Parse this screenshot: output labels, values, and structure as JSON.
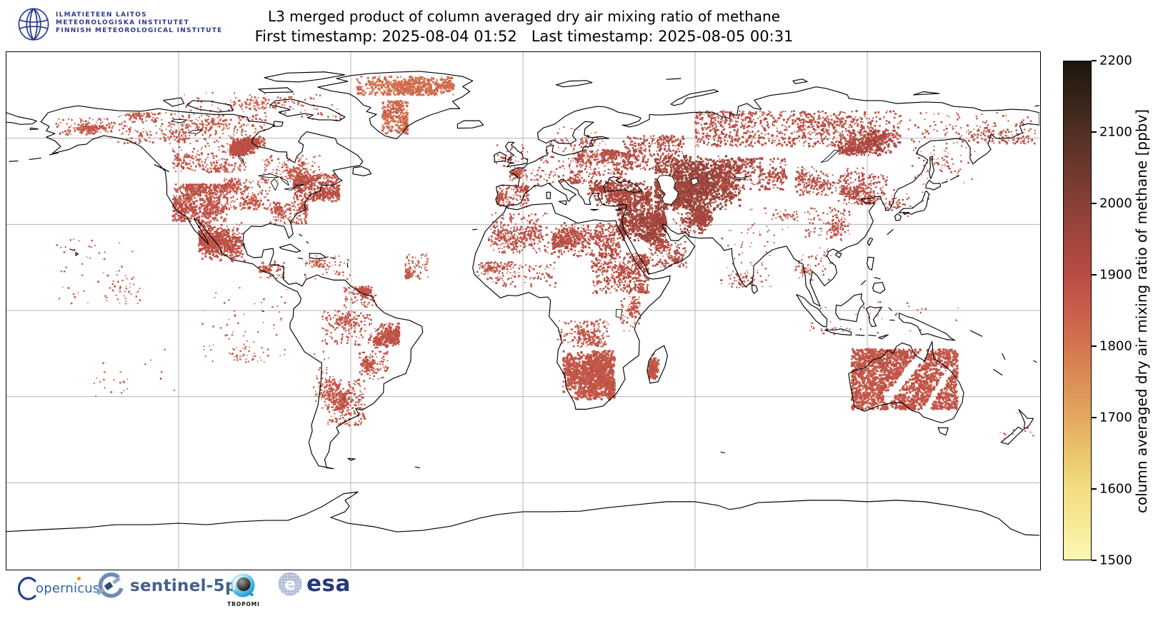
{
  "header": {
    "logo_lines": [
      "ILMATIETEEN LAITOS",
      "METEOROLOGISKA INSTITUTET",
      "FINNISH METEOROLOGICAL INSTITUTE"
    ],
    "fmi_navy": "#2d3a8c"
  },
  "title": "L3 merged product of column averaged dry air mixing ratio of methane",
  "subtitle": "First timestamp: 2025-08-04 01:52   Last timestamp: 2025-08-05 00:31",
  "colorbar": {
    "label": "column averaged dry air mixing ratio of methane [ppbv]",
    "min": 1500,
    "max": 2200,
    "ticks": [
      2200,
      2100,
      2000,
      1900,
      1800,
      1700,
      1600,
      1500
    ],
    "stops": [
      [
        1500,
        "#fdf8b4"
      ],
      [
        1550,
        "#f7ea96"
      ],
      [
        1600,
        "#f2dd80"
      ],
      [
        1650,
        "#ecc46c"
      ],
      [
        1700,
        "#e3a85e"
      ],
      [
        1750,
        "#dc8f55"
      ],
      [
        1800,
        "#d4754f"
      ],
      [
        1850,
        "#c95e4a"
      ],
      [
        1900,
        "#b94c44"
      ],
      [
        1950,
        "#a2463d"
      ],
      [
        2000,
        "#874036"
      ],
      [
        2050,
        "#6c382d"
      ],
      [
        2100,
        "#513024"
      ],
      [
        2150,
        "#362318"
      ],
      [
        2200,
        "#1c160d"
      ]
    ]
  },
  "footer_logos": {
    "copernicus_text": "opernicus",
    "sentinel_text": "sentinel-5p",
    "tropomi_text": "TROPOMI",
    "esa_text": "esa",
    "copernicus_blue": "#2a66ad",
    "sentinel_blue": "#44618c",
    "esa_navy": "#27397a",
    "tropomi_blue": "#29a8dc"
  },
  "map_style": {
    "grid_color": "#b3b3b3",
    "coast_color": "#000000",
    "background": "#ffffff"
  },
  "chart_data": {
    "type": "heatmap",
    "title": "L3 merged product of column averaged dry air mixing ratio of methane",
    "first_timestamp": "2025-08-04 01:52",
    "last_timestamp": "2025-08-05 00:31",
    "projection": "equirectangular",
    "lon_range": [
      -180,
      180
    ],
    "lat_range": [
      -90,
      90
    ],
    "grid_step": {
      "lon": 60,
      "lat": 30
    },
    "colorbar_label": "column averaged dry air mixing ratio of methane [ppbv]",
    "units": "ppbv",
    "value_range": [
      1500,
      2200
    ],
    "coverage_regions": [
      {
        "name": "alaska-interior",
        "lon": [
          -163,
          -142
        ],
        "lat": [
          61,
          67
        ],
        "points": 220,
        "value": 1862,
        "spread": 20,
        "size": 2.2,
        "mode": "scatter"
      },
      {
        "name": "nw-canada",
        "lon": [
          -141,
          -117
        ],
        "lat": [
          58,
          69
        ],
        "points": 300,
        "value": 1866,
        "spread": 20,
        "size": 2.2,
        "mode": "scatter"
      },
      {
        "name": "n-canada",
        "lon": [
          -117,
          -90
        ],
        "lat": [
          57,
          68
        ],
        "points": 320,
        "value": 1866,
        "spread": 20,
        "size": 2.2,
        "mode": "scatter"
      },
      {
        "name": "hudson-bay-west",
        "lon": [
          -102,
          -92
        ],
        "lat": [
          54,
          60
        ],
        "points": 800,
        "value": 1890,
        "spread": 22,
        "size": 2.6,
        "mode": "blob"
      },
      {
        "name": "c-canada",
        "lon": [
          -122,
          -96
        ],
        "lat": [
          48,
          57
        ],
        "points": 300,
        "value": 1868,
        "spread": 20,
        "size": 2.2,
        "mode": "scatter"
      },
      {
        "name": "ontario-quebec",
        "lon": [
          -91,
          -70
        ],
        "lat": [
          45,
          54
        ],
        "points": 260,
        "value": 1872,
        "spread": 22,
        "size": 2.2,
        "mode": "scatter"
      },
      {
        "name": "ne-us-coast",
        "lon": [
          -80,
          -64
        ],
        "lat": [
          38,
          47.5
        ],
        "points": 600,
        "value": 1888,
        "spread": 28,
        "size": 2.4,
        "mode": "scatter"
      },
      {
        "name": "se-us",
        "lon": [
          -88,
          -75
        ],
        "lat": [
          30,
          38
        ],
        "points": 260,
        "value": 1876,
        "spread": 22,
        "size": 2.2,
        "mode": "scatter"
      },
      {
        "name": "us-plains",
        "lon": [
          -104,
          -88
        ],
        "lat": [
          35,
          46
        ],
        "points": 300,
        "value": 1870,
        "spread": 20,
        "size": 2.2,
        "mode": "scatter"
      },
      {
        "name": "sw-us",
        "lon": [
          -122,
          -103
        ],
        "lat": [
          31,
          44
        ],
        "points": 850,
        "value": 1880,
        "spread": 26,
        "size": 2.4,
        "mode": "scatter"
      },
      {
        "name": "mexico",
        "lon": [
          -113,
          -97
        ],
        "lat": [
          17,
          31
        ],
        "points": 900,
        "value": 1886,
        "spread": 26,
        "size": 2.4,
        "mode": "blob"
      },
      {
        "name": "central-america",
        "lon": [
          -92,
          -83
        ],
        "lat": [
          11,
          17
        ],
        "points": 90,
        "value": 1878,
        "spread": 18,
        "size": 2.2,
        "mode": "scatter"
      },
      {
        "name": "greenland-north",
        "lon": [
          -58,
          -24
        ],
        "lat": [
          75,
          81.5
        ],
        "points": 650,
        "value": 1815,
        "spread": 22,
        "size": 2.6,
        "mode": "scatter"
      },
      {
        "name": "greenland-central",
        "lon": [
          -49,
          -40
        ],
        "lat": [
          61.5,
          73
        ],
        "points": 420,
        "value": 1822,
        "spread": 22,
        "size": 2.4,
        "mode": "scatter"
      },
      {
        "name": "arctic-islands",
        "lon": [
          -118,
          -63
        ],
        "lat": [
          66,
          76
        ],
        "points": 170,
        "value": 1855,
        "spread": 20,
        "size": 2.2,
        "mode": "scatter"
      },
      {
        "name": "caribbean",
        "lon": [
          -76,
          -59
        ],
        "lat": [
          11,
          19
        ],
        "points": 90,
        "value": 1870,
        "spread": 18,
        "size": 2.0,
        "mode": "scatter"
      },
      {
        "name": "venezuela-guyana",
        "lon": [
          -63,
          -51
        ],
        "lat": [
          1,
          8.5
        ],
        "points": 180,
        "value": 1876,
        "spread": 20,
        "size": 2.2,
        "mode": "scatter"
      },
      {
        "name": "amazon",
        "lon": [
          -70,
          -52
        ],
        "lat": [
          -12,
          0
        ],
        "points": 220,
        "value": 1872,
        "spread": 20,
        "size": 2.2,
        "mode": "scatter"
      },
      {
        "name": "brazil-east",
        "lon": [
          -52,
          -43
        ],
        "lat": [
          -13,
          -4
        ],
        "points": 420,
        "value": 1882,
        "spread": 24,
        "size": 2.5,
        "mode": "blob"
      },
      {
        "name": "brazil-south",
        "lon": [
          -57,
          -47
        ],
        "lat": [
          -24,
          -14
        ],
        "points": 180,
        "value": 1874,
        "spread": 20,
        "size": 2.2,
        "mode": "scatter"
      },
      {
        "name": "argentina-paraguay",
        "lon": [
          -68,
          -55
        ],
        "lat": [
          -40,
          -24
        ],
        "points": 380,
        "value": 1872,
        "spread": 20,
        "size": 2.3,
        "mode": "scatter"
      },
      {
        "name": "andes",
        "lon": [
          -73,
          -66
        ],
        "lat": [
          -35,
          -14
        ],
        "points": 90,
        "value": 1866,
        "spread": 18,
        "size": 2.0,
        "mode": "scatter"
      },
      {
        "name": "atlantic-itcz",
        "lon": [
          -41,
          -33
        ],
        "lat": [
          11,
          20
        ],
        "points": 140,
        "value": 1866,
        "spread": 16,
        "size": 2.1,
        "mode": "scatter"
      },
      {
        "name": "morocco-algeria",
        "lon": [
          -12,
          9
        ],
        "lat": [
          20,
          34
        ],
        "points": 380,
        "value": 1886,
        "spread": 24,
        "size": 2.2,
        "mode": "scatter"
      },
      {
        "name": "libya-egypt",
        "lon": [
          10,
          34
        ],
        "lat": [
          18,
          30.5
        ],
        "points": 700,
        "value": 1898,
        "spread": 28,
        "size": 2.4,
        "mode": "blob"
      },
      {
        "name": "sahel",
        "lon": [
          -16,
          12
        ],
        "lat": [
          8,
          17
        ],
        "points": 220,
        "value": 1882,
        "spread": 20,
        "size": 2.2,
        "mode": "scatter"
      },
      {
        "name": "sudan-ethiopia",
        "lon": [
          24,
          44
        ],
        "lat": [
          6,
          20
        ],
        "points": 550,
        "value": 1898,
        "spread": 26,
        "size": 2.4,
        "mode": "scatter"
      },
      {
        "name": "east-africa",
        "lon": [
          34,
          41
        ],
        "lat": [
          -8,
          5
        ],
        "points": 130,
        "value": 1878,
        "spread": 18,
        "size": 2.1,
        "mode": "scatter"
      },
      {
        "name": "congo-angola",
        "lon": [
          12,
          30
        ],
        "lat": [
          -13,
          -3
        ],
        "points": 240,
        "value": 1872,
        "spread": 18,
        "size": 2.2,
        "mode": "scatter"
      },
      {
        "name": "southern-africa",
        "lon": [
          14,
          32
        ],
        "lat": [
          -31,
          -14
        ],
        "points": 1500,
        "value": 1872,
        "spread": 16,
        "size": 2.8,
        "mode": "blob"
      },
      {
        "name": "madagascar",
        "lon": [
          43.5,
          48
        ],
        "lat": [
          -24,
          -14.5
        ],
        "points": 280,
        "value": 1870,
        "spread": 16,
        "size": 2.4,
        "mode": "blob"
      },
      {
        "name": "iberia",
        "lon": [
          -9,
          2
        ],
        "lat": [
          36,
          43.5
        ],
        "points": 230,
        "value": 1884,
        "spread": 22,
        "size": 2.2,
        "mode": "scatter"
      },
      {
        "name": "france",
        "lon": [
          -5,
          5
        ],
        "lat": [
          43,
          50
        ],
        "points": 120,
        "value": 1880,
        "spread": 20,
        "size": 2.1,
        "mode": "scatter"
      },
      {
        "name": "central-europe",
        "lon": [
          5,
          20
        ],
        "lat": [
          44,
          54
        ],
        "points": 160,
        "value": 1886,
        "spread": 22,
        "size": 2.1,
        "mode": "scatter"
      },
      {
        "name": "east-europe",
        "lon": [
          18,
          36
        ],
        "lat": [
          44,
          56
        ],
        "points": 420,
        "value": 1898,
        "spread": 26,
        "size": 2.3,
        "mode": "scatter"
      },
      {
        "name": "anatolia-balkans",
        "lon": [
          22,
          45
        ],
        "lat": [
          36,
          46
        ],
        "points": 650,
        "value": 1930,
        "spread": 30,
        "size": 2.5,
        "mode": "blob"
      },
      {
        "name": "levant-mesopotamia",
        "lon": [
          33,
          50
        ],
        "lat": [
          24,
          37
        ],
        "points": 1100,
        "value": 1948,
        "spread": 30,
        "size": 2.6,
        "mode": "blob"
      },
      {
        "name": "arabia-south",
        "lon": [
          44,
          57
        ],
        "lat": [
          15,
          24
        ],
        "points": 240,
        "value": 1912,
        "spread": 24,
        "size": 2.2,
        "mode": "scatter"
      },
      {
        "name": "iran-afghan",
        "lon": [
          52,
          66
        ],
        "lat": [
          26,
          36
        ],
        "points": 450,
        "value": 1940,
        "spread": 28,
        "size": 2.4,
        "mode": "blob"
      },
      {
        "name": "caspian-east",
        "lon": [
          46,
          76
        ],
        "lat": [
          35,
          54
        ],
        "points": 1900,
        "value": 1958,
        "spread": 30,
        "size": 2.8,
        "mode": "blob"
      },
      {
        "name": "west-russia",
        "lon": [
          35,
          56
        ],
        "lat": [
          49,
          61
        ],
        "points": 420,
        "value": 1905,
        "spread": 26,
        "size": 2.3,
        "mode": "scatter"
      },
      {
        "name": "kazakh-altai",
        "lon": [
          68,
          92
        ],
        "lat": [
          42,
          53
        ],
        "points": 380,
        "value": 1912,
        "spread": 26,
        "size": 2.4,
        "mode": "scatter"
      },
      {
        "name": "siberia",
        "lon": [
          60,
          132
        ],
        "lat": [
          57,
          69.5
        ],
        "points": 1100,
        "value": 1892,
        "spread": 26,
        "size": 2.4,
        "mode": "scatter"
      },
      {
        "name": "yakutia",
        "lon": [
          110,
          133
        ],
        "lat": [
          54,
          63
        ],
        "points": 450,
        "value": 1922,
        "spread": 26,
        "size": 2.6,
        "mode": "blob"
      },
      {
        "name": "ne-siberia",
        "lon": [
          134,
          179
        ],
        "lat": [
          58,
          69
        ],
        "points": 240,
        "value": 1880,
        "spread": 22,
        "size": 2.2,
        "mode": "scatter"
      },
      {
        "name": "mongolia",
        "lon": [
          95,
          120
        ],
        "lat": [
          40,
          50
        ],
        "points": 280,
        "value": 1896,
        "spread": 24,
        "size": 2.2,
        "mode": "scatter"
      },
      {
        "name": "ne-china",
        "lon": [
          110,
          127
        ],
        "lat": [
          37,
          48
        ],
        "points": 320,
        "value": 1902,
        "spread": 26,
        "size": 2.3,
        "mode": "scatter"
      },
      {
        "name": "china-south",
        "lon": [
          98,
          114
        ],
        "lat": [
          24,
          36
        ],
        "points": 150,
        "value": 1890,
        "spread": 22,
        "size": 2.1,
        "mode": "scatter"
      },
      {
        "name": "tibet",
        "lon": [
          78,
          96
        ],
        "lat": [
          28,
          36
        ],
        "points": 60,
        "value": 1886,
        "spread": 18,
        "size": 2.0,
        "mode": "scatter"
      },
      {
        "name": "india",
        "lon": [
          69,
          88
        ],
        "lat": [
          8,
          28
        ],
        "points": 130,
        "value": 1880,
        "spread": 20,
        "size": 2.0,
        "mode": "scatter"
      },
      {
        "name": "indochina",
        "lon": [
          95,
          108
        ],
        "lat": [
          10,
          22
        ],
        "points": 80,
        "value": 1876,
        "spread": 18,
        "size": 2.0,
        "mode": "scatter"
      },
      {
        "name": "maritime-se-asia",
        "lon": [
          100,
          152
        ],
        "lat": [
          -9,
          3
        ],
        "points": 70,
        "value": 1870,
        "spread": 16,
        "size": 2.0,
        "mode": "scatter"
      },
      {
        "name": "australia",
        "lon": [
          114.5,
          151.5
        ],
        "lat": [
          -34.5,
          -13.5
        ],
        "points": 2400,
        "value": 1872,
        "spread": 16,
        "size": 2.8,
        "mode": "field",
        "gaps": [
          [
            139.5,
            -15,
            127,
            -31,
            1.5
          ],
          [
            149,
            -20.5,
            140.5,
            -34,
            1.1
          ]
        ]
      },
      {
        "name": "scandinavia-baltic",
        "lon": [
          8,
          30
        ],
        "lat": [
          54,
          64
        ],
        "points": 90,
        "value": 1880,
        "spread": 20,
        "size": 2.0,
        "mode": "scatter"
      },
      {
        "name": "uk-ireland",
        "lon": [
          -10,
          2
        ],
        "lat": [
          50,
          58
        ],
        "points": 50,
        "value": 1880,
        "spread": 18,
        "size": 2.0,
        "mode": "scatter"
      },
      {
        "name": "japan-korea",
        "lon": [
          126,
          142
        ],
        "lat": [
          32,
          42
        ],
        "points": 55,
        "value": 1886,
        "spread": 20,
        "size": 2.0,
        "mode": "scatter"
      },
      {
        "name": "okhotsk-sakhalin",
        "lon": [
          135,
          158
        ],
        "lat": [
          44,
          58
        ],
        "points": 80,
        "value": 1882,
        "spread": 20,
        "size": 2.0,
        "mode": "scatter"
      },
      {
        "name": "east-pacific-coastal",
        "lon": [
          -112,
          -82
        ],
        "lat": [
          -18,
          8
        ],
        "points": 120,
        "value": 1864,
        "spread": 14,
        "size": 2.0,
        "mode": "scatter"
      },
      {
        "name": "hawaii-pacific",
        "lon": [
          -163,
          -133
        ],
        "lat": [
          2,
          26
        ],
        "points": 90,
        "value": 1862,
        "spread": 14,
        "size": 2.0,
        "mode": "scatter"
      },
      {
        "name": "south-pacific",
        "lon": [
          -150,
          -120
        ],
        "lat": [
          -30,
          -12
        ],
        "points": 25,
        "value": 1862,
        "spread": 12,
        "size": 2.0,
        "mode": "scatter"
      },
      {
        "name": "new-zealand",
        "lon": [
          166,
          178
        ],
        "lat": [
          -46,
          -35
        ],
        "points": 12,
        "value": 1876,
        "spread": 14,
        "size": 2.0,
        "mode": "scatter"
      }
    ]
  }
}
